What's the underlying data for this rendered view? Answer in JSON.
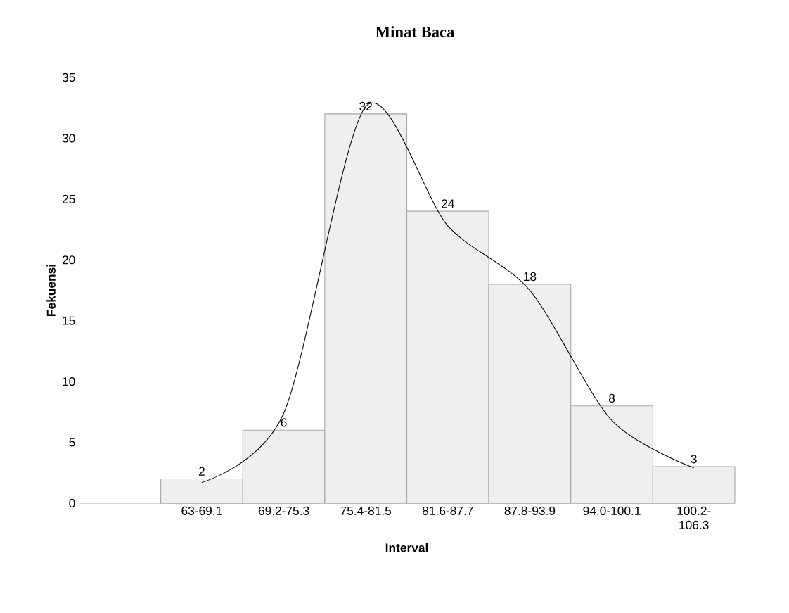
{
  "chart_data": {
    "type": "bar",
    "title": "Minat Baca",
    "xlabel": "Interval",
    "ylabel": "Fekuensi",
    "categories": [
      null,
      "63-69.1",
      "69.2-75.3",
      "75.4-81.5",
      "81.6-87.7",
      "87.8-93.9",
      "94.0-100.1",
      "100.2-106.3"
    ],
    "series": [
      {
        "color": "#efefef",
        "values": [
          null,
          2,
          6,
          32,
          24,
          18,
          8,
          3
        ],
        "value_labels": [
          null,
          "2",
          "6",
          "32",
          "24",
          "18",
          "8",
          "3"
        ]
      },
      {
        "type": "line",
        "color": "#000000",
        "values": [
          null,
          1.7,
          7.4,
          32.6,
          22.8,
          17.5,
          6.8,
          2.9
        ]
      }
    ],
    "ylim": [
      0,
      35
    ],
    "yticks": [
      0,
      5,
      10,
      15,
      20,
      25,
      30,
      35
    ],
    "grid": false
  }
}
